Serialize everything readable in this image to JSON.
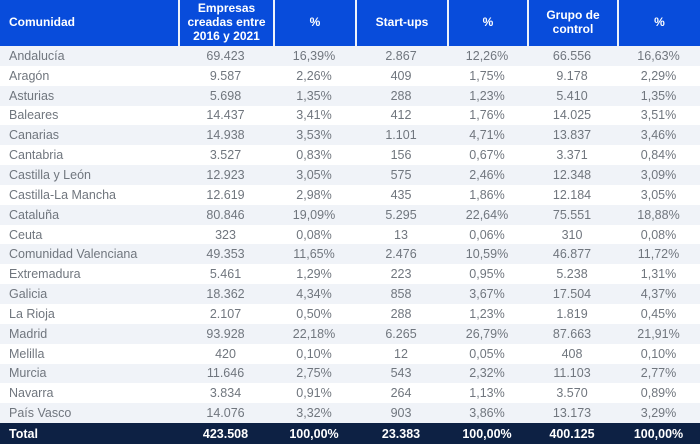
{
  "colors": {
    "header_background": "#084cdb",
    "header_text": "#ffffff",
    "stripe_row": "#f0f3f8",
    "plain_row": "#ffffff",
    "body_text": "#70767e",
    "total_background": "#0d2144",
    "total_text": "#ffffff"
  },
  "chart_data": {
    "type": "table",
    "columns": [
      "Comunidad",
      "Empresas creadas entre 2016 y 2021",
      "%",
      "Start-ups",
      "%",
      "Grupo de control",
      "%"
    ],
    "rows": [
      {
        "community": "Andalucía",
        "values": [
          "69.423",
          "16,39%",
          "2.867",
          "12,26%",
          "66.556",
          "16,63%"
        ]
      },
      {
        "community": "Aragón",
        "values": [
          "9.587",
          "2,26%",
          "409",
          "1,75%",
          "9.178",
          "2,29%"
        ]
      },
      {
        "community": "Asturias",
        "values": [
          "5.698",
          "1,35%",
          "288",
          "1,23%",
          "5.410",
          "1,35%"
        ]
      },
      {
        "community": "Baleares",
        "values": [
          "14.437",
          "3,41%",
          "412",
          "1,76%",
          "14.025",
          "3,51%"
        ]
      },
      {
        "community": "Canarias",
        "values": [
          "14.938",
          "3,53%",
          "1.101",
          "4,71%",
          "13.837",
          "3,46%"
        ]
      },
      {
        "community": "Cantabria",
        "values": [
          "3.527",
          "0,83%",
          "156",
          "0,67%",
          "3.371",
          "0,84%"
        ]
      },
      {
        "community": "Castilla y León",
        "values": [
          "12.923",
          "3,05%",
          "575",
          "2,46%",
          "12.348",
          "3,09%"
        ]
      },
      {
        "community": "Castilla-La Mancha",
        "values": [
          "12.619",
          "2,98%",
          "435",
          "1,86%",
          "12.184",
          "3,05%"
        ]
      },
      {
        "community": "Cataluña",
        "values": [
          "80.846",
          "19,09%",
          "5.295",
          "22,64%",
          "75.551",
          "18,88%"
        ]
      },
      {
        "community": "Ceuta",
        "values": [
          "323",
          "0,08%",
          "13",
          "0,06%",
          "310",
          "0,08%"
        ]
      },
      {
        "community": "Comunidad Valenciana",
        "values": [
          "49.353",
          "11,65%",
          "2.476",
          "10,59%",
          "46.877",
          "11,72%"
        ]
      },
      {
        "community": "Extremadura",
        "values": [
          "5.461",
          "1,29%",
          "223",
          "0,95%",
          "5.238",
          "1,31%"
        ]
      },
      {
        "community": "Galicia",
        "values": [
          "18.362",
          "4,34%",
          "858",
          "3,67%",
          "17.504",
          "4,37%"
        ]
      },
      {
        "community": "La Rioja",
        "values": [
          "2.107",
          "0,50%",
          "288",
          "1,23%",
          "1.819",
          "0,45%"
        ]
      },
      {
        "community": "Madrid",
        "values": [
          "93.928",
          "22,18%",
          "6.265",
          "26,79%",
          "87.663",
          "21,91%"
        ]
      },
      {
        "community": "Melilla",
        "values": [
          "420",
          "0,10%",
          "12",
          "0,05%",
          "408",
          "0,10%"
        ]
      },
      {
        "community": "Murcia",
        "values": [
          "11.646",
          "2,75%",
          "543",
          "2,32%",
          "11.103",
          "2,77%"
        ]
      },
      {
        "community": "Navarra",
        "values": [
          "3.834",
          "0,91%",
          "264",
          "1,13%",
          "3.570",
          "0,89%"
        ]
      },
      {
        "community": "País Vasco",
        "values": [
          "14.076",
          "3,32%",
          "903",
          "3,86%",
          "13.173",
          "3,29%"
        ]
      }
    ],
    "total": {
      "label": "Total",
      "values": [
        "423.508",
        "100,00%",
        "23.383",
        "100,00%",
        "400.125",
        "100,00%"
      ]
    }
  }
}
